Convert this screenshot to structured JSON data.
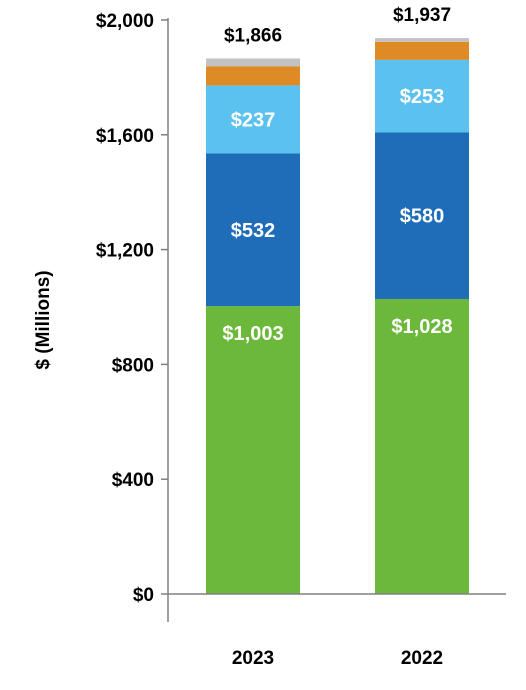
{
  "chart_data": {
    "type": "bar",
    "stacked": true,
    "title": "",
    "xlabel": "",
    "ylabel": "$ (Millions)",
    "ylim": [
      0,
      2000
    ],
    "yticks": [
      0,
      400,
      800,
      1200,
      1600,
      2000
    ],
    "ytick_labels": [
      "$0",
      "$400",
      "$800",
      "$1,200",
      "$1,600",
      "$2,000"
    ],
    "categories": [
      "2023",
      "2022"
    ],
    "totals": [
      1866,
      1937
    ],
    "total_labels": [
      "$1,866",
      "$1,937"
    ],
    "series": [
      {
        "color": "#6cb83a",
        "values": [
          1003,
          1028
        ],
        "labels": [
          "$1,003",
          "$1,028"
        ]
      },
      {
        "color": "#1f6db8",
        "values": [
          532,
          580
        ],
        "labels": [
          "$532",
          "$580"
        ]
      },
      {
        "color": "#5bc2ef",
        "values": [
          237,
          253
        ],
        "labels": [
          "$237",
          "$253"
        ]
      },
      {
        "color": "#de8b26",
        "values": [
          66,
          63
        ],
        "labels": [
          "",
          ""
        ]
      },
      {
        "color": "#c3c3c3",
        "values": [
          28,
          13
        ],
        "labels": [
          "",
          ""
        ]
      }
    ],
    "grid": false,
    "legend": "none"
  }
}
